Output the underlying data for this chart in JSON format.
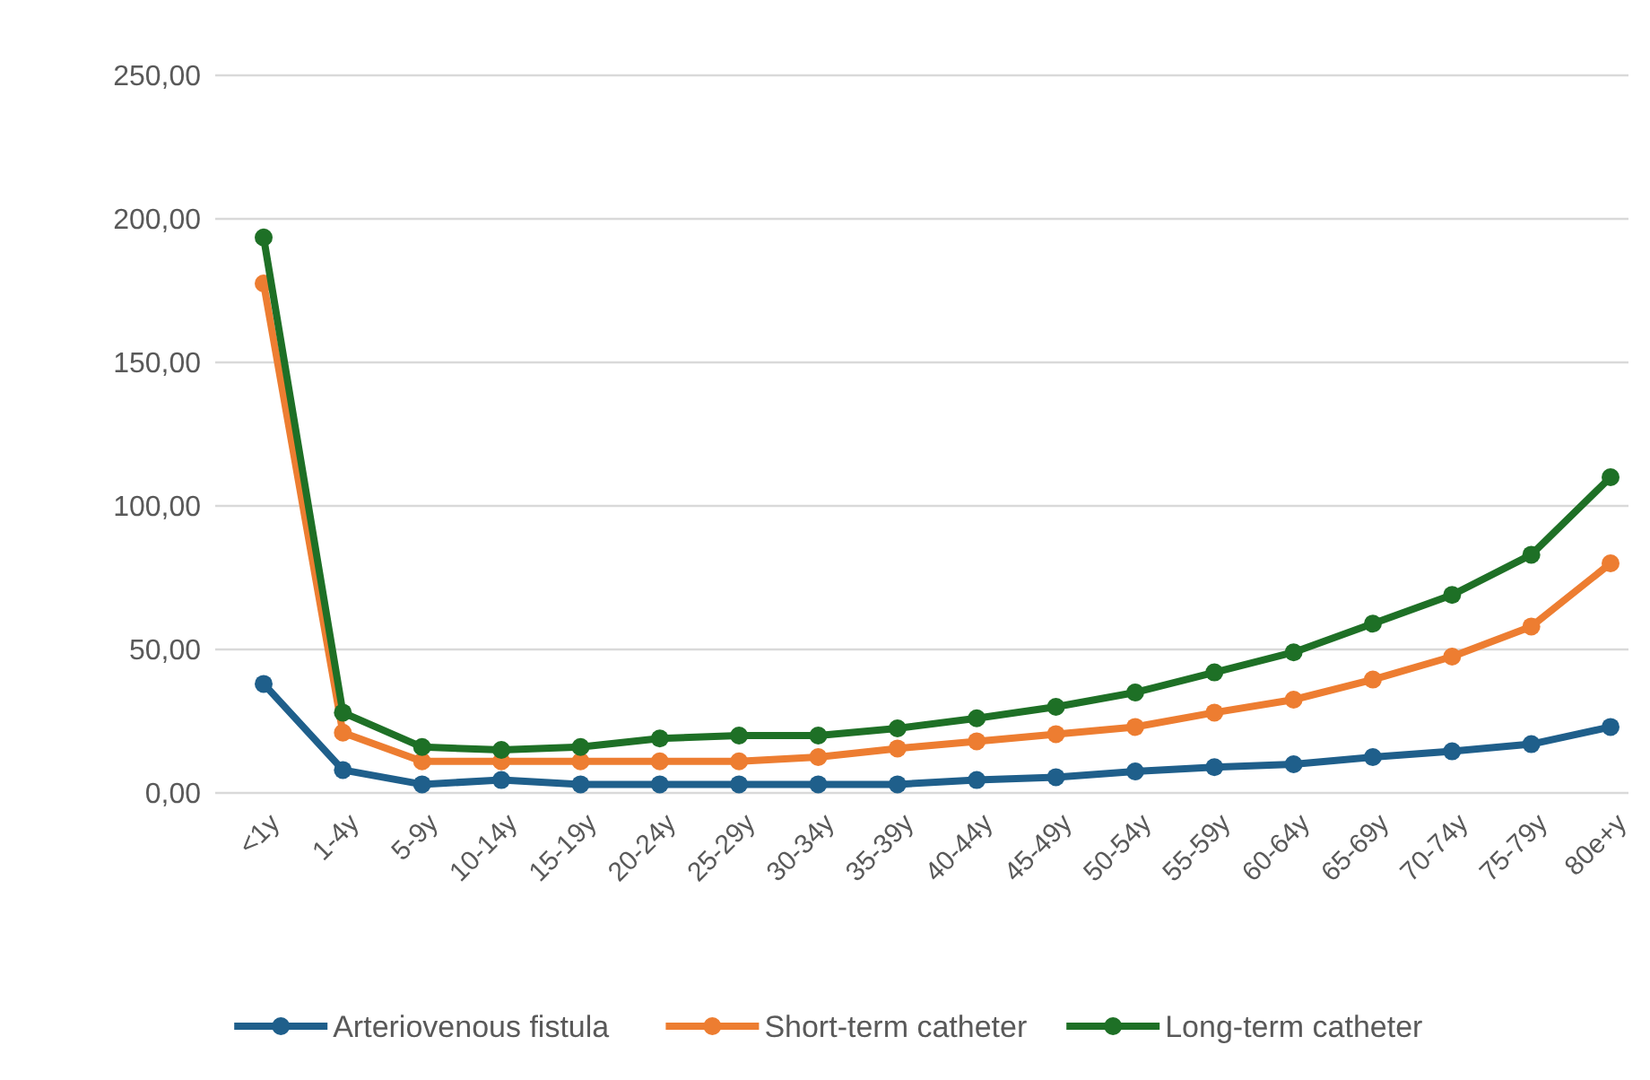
{
  "chart_data": {
    "type": "line",
    "categories": [
      "<1y",
      "1-4y",
      "5-9y",
      "10-14y",
      "15-19y",
      "20-24y",
      "25-29y",
      "30-34y",
      "35-39y",
      "40-44y",
      "45-49y",
      "50-54y",
      "55-59y",
      "60-64y",
      "65-69y",
      "70-74y",
      "75-79y",
      "80e+y"
    ],
    "series": [
      {
        "name": "Arteriovenous fistula",
        "color": "#1f5f8b",
        "values": [
          38,
          8,
          3,
          4.5,
          3,
          3,
          3,
          3,
          3,
          4.5,
          5.5,
          7.5,
          9,
          10,
          12.5,
          14.5,
          17,
          23
        ]
      },
      {
        "name": "Short-term catheter",
        "color": "#ed7d31",
        "values": [
          177.5,
          21,
          11,
          11,
          11,
          11,
          11,
          12.5,
          15.5,
          18,
          20.5,
          23,
          28,
          32.5,
          39.5,
          47.5,
          58,
          80
        ]
      },
      {
        "name": "Long-term catheter",
        "color": "#1e7026",
        "values": [
          193.5,
          28,
          16,
          15,
          16,
          19,
          20,
          20,
          22.5,
          26,
          30,
          35,
          42,
          49,
          59,
          69,
          83,
          110
        ]
      }
    ],
    "ylim": [
      0,
      250
    ],
    "yticks": [
      {
        "value": 0,
        "label": "0,00"
      },
      {
        "value": 50,
        "label": "50,00"
      },
      {
        "value": 100,
        "label": "100,00"
      },
      {
        "value": 150,
        "label": "150,00"
      },
      {
        "value": 200,
        "label": "200,00"
      },
      {
        "value": 250,
        "label": "250,00"
      }
    ],
    "grid": "y",
    "legend": "bottom",
    "marker": "circle",
    "line_style": "solid"
  }
}
